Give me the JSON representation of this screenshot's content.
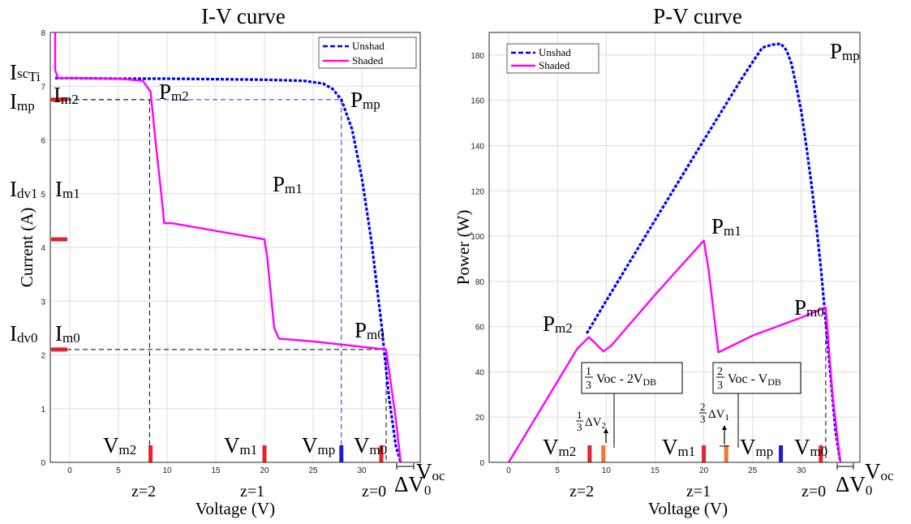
{
  "chart_data": [
    {
      "type": "line",
      "title": "I-V curve",
      "xlabel": "Voltage (V)",
      "ylabel": "Current (A)",
      "xlim": [
        -2,
        36
      ],
      "ylim": [
        0,
        8
      ],
      "xticks": [
        0,
        5,
        10,
        15,
        20,
        25,
        30
      ],
      "yticks": [
        0,
        1,
        2,
        3,
        4,
        5,
        6,
        7,
        8
      ],
      "grid": true,
      "legend": "top-right",
      "series": [
        {
          "name": "Unshad",
          "style": "dashed",
          "color": "#0000ff",
          "x": [
            -1.5,
            0,
            5,
            10,
            15,
            20,
            24,
            26,
            27,
            27.9,
            29,
            30,
            31,
            32,
            32.8,
            33.5,
            34
          ],
          "y": [
            7.15,
            7.15,
            7.14,
            7.14,
            7.13,
            7.12,
            7.1,
            7.05,
            6.95,
            6.75,
            6.2,
            5.3,
            4.1,
            2.6,
            1.2,
            0.3,
            0
          ]
        },
        {
          "name": "Shaded",
          "style": "solid",
          "color": "#ff00ff",
          "x": [
            -1.5,
            -1.5,
            -1.2,
            0,
            5,
            7.5,
            8.3,
            8.8,
            9.4,
            9.7,
            10.5,
            20,
            20.3,
            21,
            21.5,
            25,
            30,
            32.5,
            33.5,
            34
          ],
          "y": [
            8,
            7.3,
            7.15,
            7.15,
            7.14,
            7.1,
            6.9,
            6.0,
            5.0,
            4.45,
            4.45,
            4.15,
            3.8,
            2.5,
            2.3,
            2.25,
            2.15,
            2.1,
            0.8,
            0
          ]
        }
      ],
      "guides": {
        "mp": {
          "v": 27.9,
          "i": 6.75
        },
        "m2": {
          "v": 8.2,
          "i": 6.75
        },
        "m1": {
          "v": 20,
          "i": 4.15
        },
        "m0": {
          "v": 32.5,
          "i": 2.1
        }
      },
      "bar_markers": [
        {
          "x": 8.3,
          "color": "#e8202a"
        },
        {
          "x": 20,
          "color": "#e8202a"
        },
        {
          "x": 27.9,
          "color": "#1a1adf"
        },
        {
          "x": 32,
          "color": "#e8202a"
        }
      ],
      "y_markers": [
        {
          "y": 6.75,
          "color": "#e8202a"
        },
        {
          "y": 4.15,
          "color": "#e8202a"
        },
        {
          "y": 2.1,
          "color": "#e8202a"
        }
      ]
    },
    {
      "type": "line",
      "title": "P-V curve",
      "xlabel": "Voltage (V)",
      "ylabel": "Power (W)",
      "xlim": [
        -2,
        36
      ],
      "ylim": [
        0,
        190
      ],
      "xticks": [
        0,
        5,
        10,
        15,
        20,
        25,
        30
      ],
      "yticks": [
        0,
        20,
        40,
        60,
        80,
        100,
        120,
        140,
        160,
        180
      ],
      "grid": true,
      "legend": "top-left",
      "series": [
        {
          "name": "Unshad",
          "style": "dashed",
          "color": "#0000ff",
          "x": [
            8,
            10,
            15,
            20,
            24,
            26,
            27,
            27.9,
            28.5,
            29,
            29.5,
            30,
            30.5,
            31,
            31.5,
            32,
            32.5,
            33,
            33.5,
            34
          ],
          "y": [
            57,
            71.4,
            107,
            142.4,
            170.4,
            183.3,
            184.6,
            185,
            182,
            176,
            166,
            155,
            140,
            124,
            106,
            86,
            62,
            38,
            14,
            0
          ]
        },
        {
          "name": "Shaded",
          "style": "solid",
          "color": "#ff00ff",
          "x": [
            0,
            5,
            7,
            8.2,
            8.8,
            9.7,
            10.5,
            15,
            20,
            20.5,
            21.5,
            25,
            30,
            32.5,
            33.2,
            34
          ],
          "y": [
            0,
            35.7,
            50,
            55.3,
            53,
            49,
            51.5,
            74,
            98,
            85,
            48.6,
            56,
            64,
            68.5,
            30,
            0
          ]
        }
      ],
      "guides": {
        "m0": {
          "v": 32.5
        }
      },
      "bar_markers": [
        {
          "x": 8.3,
          "color": "#e8202a"
        },
        {
          "x": 9.7,
          "color": "#f07a2a"
        },
        {
          "x": 20,
          "color": "#e8202a"
        },
        {
          "x": 22.3,
          "color": "#f07a2a"
        },
        {
          "x": 27.9,
          "color": "#1a1adf"
        },
        {
          "x": 32,
          "color": "#e8202a"
        }
      ]
    }
  ],
  "labels": {
    "iv": {
      "isc_main": "I",
      "isc_sub1": "sc",
      "isc_sub2": "Ti",
      "imp_main": "I",
      "imp_sub": "mp",
      "im2_main": "I",
      "im2_sub": "m2",
      "idv1_main": "I",
      "idv1_sub": "dv1",
      "im1_main": "I",
      "im1_sub": "m1",
      "idv0_main": "I",
      "idv0_sub": "dv0",
      "im0_main": "I",
      "im0_sub": "m0",
      "pm2_main": "P",
      "pm2_sub": "m2",
      "pmp_main": "P",
      "pmp_sub": "mp",
      "pm1_main": "P",
      "pm1_sub": "m1",
      "pm0_main": "P",
      "pm0_sub": "m0",
      "vm2_main": "V",
      "vm2_sub": "m2",
      "vm1_main": "V",
      "vm1_sub": "m1",
      "vmp_main": "V",
      "vmp_sub": "mp",
      "vm0_main": "V",
      "vm0_sub": "m0",
      "voc_main": "V",
      "voc_sub": "oc",
      "z2": "z=2",
      "z1": "z=1",
      "z0": "z=0",
      "dv0_main": "ΔV",
      "dv0_sub": "0"
    },
    "pv": {
      "pmp_main": "P",
      "pmp_sub": "mp",
      "pm1_main": "P",
      "pm1_sub": "m1",
      "pm2_main": "P",
      "pm2_sub": "m2",
      "pm0_main": "P",
      "pm0_sub": "m0",
      "vm2_main": "V",
      "vm2_sub": "m2",
      "vm1_main": "V",
      "vm1_sub": "m1",
      "vmp_main": "V",
      "vmp_sub": "mp",
      "vm0_main": "V",
      "vm0_sub": "m0",
      "voc_main": "V",
      "voc_sub": "oc",
      "z2": "z=2",
      "z1": "z=1",
      "z0": "z=0",
      "dv0_main": "ΔV",
      "dv0_sub": "0",
      "box1_num": "1",
      "box1_den": "3",
      "box1_text": "Voc - 2V",
      "box1_sub": "DB",
      "box2_num": "2",
      "box2_den": "3",
      "box2_text": "Voc - V",
      "box2_sub": "DB",
      "frac1_num": "1",
      "frac1_den": "3",
      "frac1_dv": "ΔV",
      "frac1_sub": "2",
      "frac2_num": "2",
      "frac2_den": "3",
      "frac2_dv": "ΔV",
      "frac2_sub": "1"
    }
  }
}
